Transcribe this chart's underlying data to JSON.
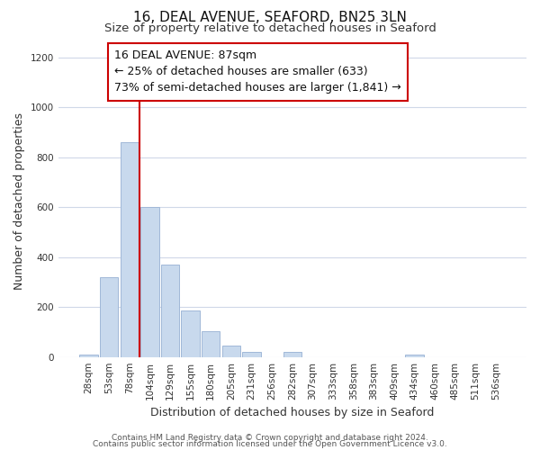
{
  "title": "16, DEAL AVENUE, SEAFORD, BN25 3LN",
  "subtitle": "Size of property relative to detached houses in Seaford",
  "xlabel": "Distribution of detached houses by size in Seaford",
  "ylabel": "Number of detached properties",
  "bar_labels": [
    "28sqm",
    "53sqm",
    "78sqm",
    "104sqm",
    "129sqm",
    "155sqm",
    "180sqm",
    "205sqm",
    "231sqm",
    "256sqm",
    "282sqm",
    "307sqm",
    "333sqm",
    "358sqm",
    "383sqm",
    "409sqm",
    "434sqm",
    "460sqm",
    "485sqm",
    "511sqm",
    "536sqm"
  ],
  "bar_values": [
    10,
    320,
    860,
    600,
    370,
    185,
    105,
    45,
    20,
    0,
    20,
    0,
    0,
    0,
    0,
    0,
    10,
    0,
    0,
    0,
    0
  ],
  "bar_color": "#c8d9ed",
  "bar_edge_color": "#a0b8d8",
  "grid_color": "#d0d8e8",
  "vline_x": 2.5,
  "vline_color": "#cc0000",
  "annotation_title": "16 DEAL AVENUE: 87sqm",
  "annotation_line1": "← 25% of detached houses are smaller (633)",
  "annotation_line2": "73% of semi-detached houses are larger (1,841) →",
  "annotation_box_color": "#ffffff",
  "annotation_box_edge": "#cc0000",
  "ylim": [
    0,
    1250
  ],
  "yticks": [
    0,
    200,
    400,
    600,
    800,
    1000,
    1200
  ],
  "footer1": "Contains HM Land Registry data © Crown copyright and database right 2024.",
  "footer2": "Contains public sector information licensed under the Open Government Licence v3.0.",
  "title_fontsize": 11,
  "subtitle_fontsize": 9.5,
  "axis_label_fontsize": 9,
  "tick_fontsize": 7.5,
  "annotation_fontsize": 9,
  "footer_fontsize": 6.5
}
